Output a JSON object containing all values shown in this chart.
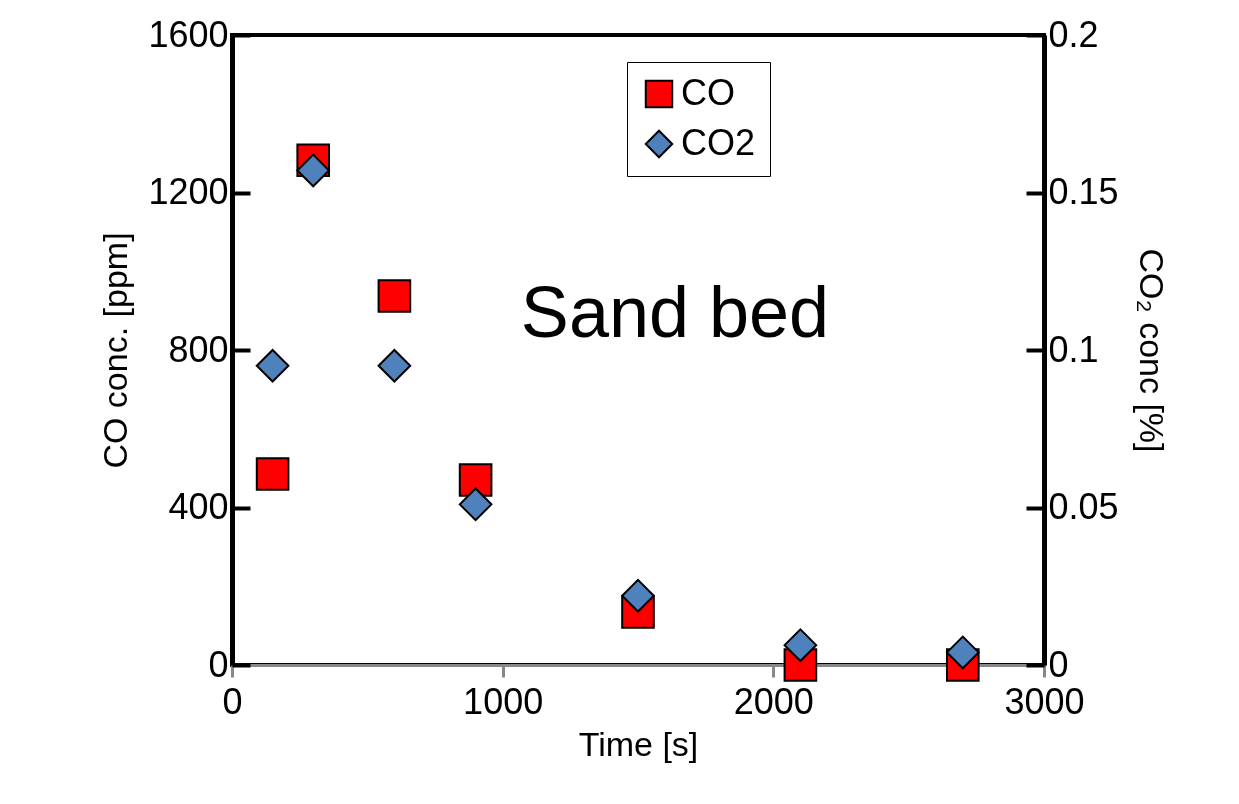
{
  "chart_data": {
    "type": "scatter",
    "xlabel": "Time [s]",
    "ylabel": "CO conc. [ppm]",
    "y2label": "CO₂ conc [%]",
    "x": [
      150,
      300,
      600,
      900,
      1500,
      2100,
      2700
    ],
    "xlim": [
      0,
      3000
    ],
    "xticks": [
      0,
      1000,
      2000,
      3000
    ],
    "ylim": [
      0,
      1600
    ],
    "yticks": [
      0,
      400,
      800,
      1200,
      1600
    ],
    "y2lim": [
      0,
      0.2
    ],
    "y2ticks": [
      0,
      0.05,
      0.1,
      0.15,
      0.2
    ],
    "series": [
      {
        "name": "CO",
        "color": "#ff0000",
        "marker": "square",
        "values": [
          485,
          1282,
          937,
          470,
          135,
          0,
          0
        ]
      },
      {
        "name": "CO2",
        "color": "#4f81bd",
        "marker": "diamond",
        "axis": "y2",
        "values": [
          0.095,
          0.157,
          0.095,
          0.051,
          0.022,
          0.0063,
          0.004
        ]
      }
    ],
    "annotations": [
      "Sand bed"
    ],
    "legend": "top right",
    "grid": false
  }
}
